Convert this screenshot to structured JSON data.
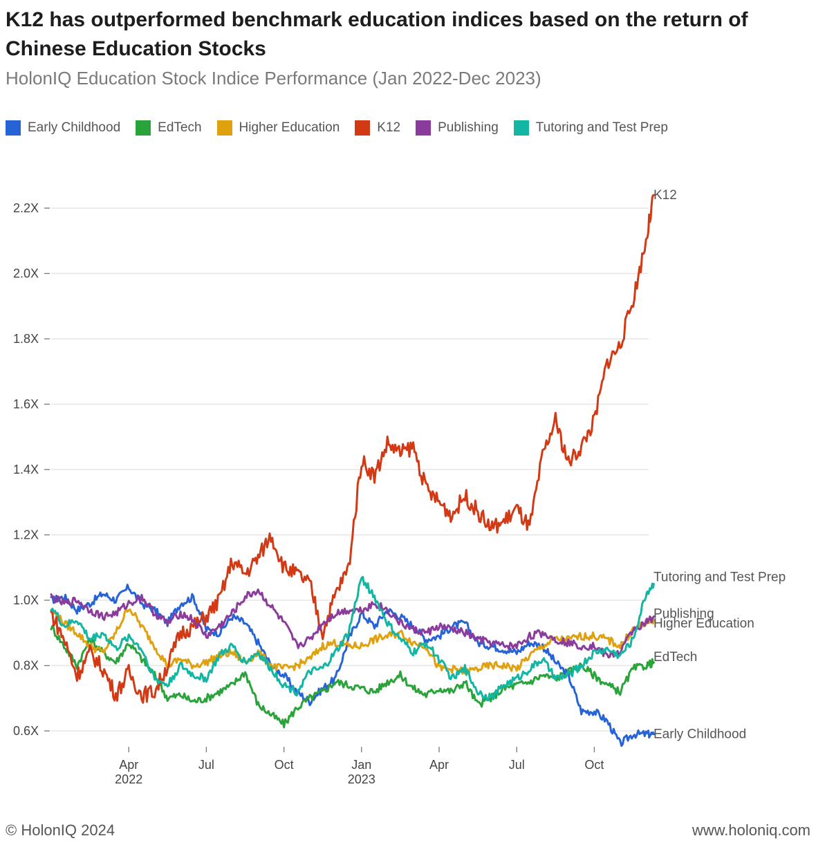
{
  "header": {
    "title": "K12 has outperformed benchmark education indices based on the return of Chinese Education Stocks",
    "subtitle": "HolonIQ Education Stock Indice Performance (Jan 2022-Dec 2023)"
  },
  "footer": {
    "copyright": "© HolonIQ 2024",
    "website": "www.holoniq.com"
  },
  "chart_data": {
    "type": "line",
    "title": "HolonIQ Education Stock Indice Performance (Jan 2022-Dec 2023)",
    "xlabel": "",
    "ylabel": "",
    "x_range_months": [
      0,
      24
    ],
    "ylim": [
      0.55,
      2.3
    ],
    "y_ticks": [
      0.6,
      0.8,
      1.0,
      1.2,
      1.4,
      1.6,
      1.8,
      2.0,
      2.2
    ],
    "y_tick_labels": [
      "0.6X",
      "0.8X",
      "1.0X",
      "1.2X",
      "1.4X",
      "1.6X",
      "1.8X",
      "2.0X",
      "2.2X"
    ],
    "x_ticks": [
      {
        "month": 3,
        "label": "Apr",
        "sub": "2022"
      },
      {
        "month": 6,
        "label": "Jul",
        "sub": ""
      },
      {
        "month": 9,
        "label": "Oct",
        "sub": ""
      },
      {
        "month": 12,
        "label": "Jan",
        "sub": "2023"
      },
      {
        "month": 15,
        "label": "Apr",
        "sub": ""
      },
      {
        "month": 18,
        "label": "Jul",
        "sub": ""
      },
      {
        "month": 21,
        "label": "Oct",
        "sub": ""
      }
    ],
    "grid": true,
    "legend_position": "top-left",
    "x": [
      0,
      0.5,
      1,
      1.5,
      2,
      2.5,
      3,
      3.5,
      4,
      4.5,
      5,
      5.5,
      6,
      6.5,
      7,
      7.5,
      8,
      8.5,
      9,
      9.5,
      10,
      10.5,
      11,
      11.5,
      12,
      12.5,
      13,
      13.5,
      14,
      14.5,
      15,
      15.5,
      16,
      16.5,
      17,
      17.5,
      18,
      18.5,
      19,
      19.5,
      20,
      20.5,
      21,
      21.5,
      22,
      22.5,
      23,
      23.3
    ],
    "series": [
      {
        "name": "Early Childhood",
        "color": "#2563d6",
        "end_label": "Early Childhood",
        "values": [
          1.0,
          1.01,
          0.97,
          0.99,
          1.02,
          1.0,
          1.04,
          0.99,
          0.97,
          0.93,
          0.99,
          1.01,
          0.91,
          0.9,
          0.95,
          0.93,
          0.87,
          0.8,
          0.77,
          0.72,
          0.69,
          0.73,
          0.76,
          0.88,
          0.96,
          0.92,
          0.97,
          0.95,
          0.92,
          0.88,
          0.89,
          0.92,
          0.93,
          0.87,
          0.86,
          0.85,
          0.84,
          0.87,
          0.86,
          0.81,
          0.77,
          0.66,
          0.66,
          0.63,
          0.56,
          0.59,
          0.59,
          0.59
        ]
      },
      {
        "name": "EdTech",
        "color": "#2aa33a",
        "end_label": "EdTech",
        "values": [
          0.92,
          0.86,
          0.8,
          0.88,
          0.84,
          0.81,
          0.87,
          0.82,
          0.77,
          0.7,
          0.71,
          0.69,
          0.7,
          0.72,
          0.74,
          0.78,
          0.68,
          0.65,
          0.62,
          0.67,
          0.7,
          0.72,
          0.75,
          0.74,
          0.73,
          0.72,
          0.75,
          0.77,
          0.73,
          0.71,
          0.73,
          0.72,
          0.75,
          0.68,
          0.7,
          0.73,
          0.74,
          0.75,
          0.77,
          0.76,
          0.78,
          0.8,
          0.77,
          0.74,
          0.72,
          0.79,
          0.8,
          0.81
        ]
      },
      {
        "name": "Higher Education",
        "color": "#e0a10e",
        "end_label": "Higher Education",
        "values": [
          0.97,
          0.93,
          0.9,
          0.86,
          0.84,
          0.9,
          0.98,
          0.92,
          0.86,
          0.8,
          0.82,
          0.8,
          0.81,
          0.83,
          0.84,
          0.81,
          0.84,
          0.8,
          0.79,
          0.8,
          0.82,
          0.86,
          0.87,
          0.86,
          0.86,
          0.88,
          0.89,
          0.9,
          0.87,
          0.86,
          0.79,
          0.79,
          0.78,
          0.79,
          0.8,
          0.8,
          0.79,
          0.83,
          0.86,
          0.88,
          0.88,
          0.89,
          0.89,
          0.88,
          0.86,
          0.91,
          0.93,
          0.94
        ]
      },
      {
        "name": "K12",
        "color": "#d23a16",
        "end_label": "K12",
        "values": [
          0.96,
          0.88,
          0.77,
          0.84,
          0.79,
          0.71,
          0.78,
          0.71,
          0.72,
          0.8,
          0.9,
          0.92,
          0.95,
          1.0,
          1.12,
          1.08,
          1.13,
          1.2,
          1.1,
          1.08,
          1.05,
          0.9,
          1.02,
          1.1,
          1.43,
          1.38,
          1.48,
          1.45,
          1.47,
          1.34,
          1.3,
          1.26,
          1.32,
          1.27,
          1.22,
          1.24,
          1.28,
          1.22,
          1.44,
          1.55,
          1.42,
          1.47,
          1.55,
          1.73,
          1.78,
          1.92,
          2.1,
          2.24
        ]
      },
      {
        "name": "Publishing",
        "color": "#8b3b9c",
        "end_label": "Publishing",
        "values": [
          1.01,
          0.99,
          1.0,
          0.97,
          0.95,
          0.96,
          0.99,
          1.01,
          0.96,
          0.93,
          0.96,
          0.94,
          0.89,
          0.92,
          0.96,
          1.01,
          1.03,
          0.98,
          0.93,
          0.86,
          0.88,
          0.93,
          0.96,
          0.97,
          0.97,
          0.99,
          0.97,
          0.93,
          0.91,
          0.9,
          0.92,
          0.91,
          0.9,
          0.88,
          0.87,
          0.86,
          0.86,
          0.89,
          0.9,
          0.88,
          0.87,
          0.86,
          0.86,
          0.83,
          0.84,
          0.91,
          0.93,
          0.95
        ]
      },
      {
        "name": "Tutoring and Test Prep",
        "color": "#13b5a3",
        "end_label": "Tutoring and Test Prep",
        "values": [
          0.98,
          0.92,
          0.94,
          0.88,
          0.9,
          0.85,
          0.89,
          0.85,
          0.76,
          0.74,
          0.8,
          0.77,
          0.76,
          0.83,
          0.86,
          0.81,
          0.84,
          0.79,
          0.74,
          0.72,
          0.78,
          0.79,
          0.84,
          0.9,
          1.07,
          1.01,
          0.93,
          0.88,
          0.84,
          0.87,
          0.82,
          0.76,
          0.79,
          0.72,
          0.7,
          0.74,
          0.76,
          0.79,
          0.82,
          0.76,
          0.77,
          0.8,
          0.84,
          0.85,
          0.83,
          0.88,
          1.02,
          1.05
        ]
      }
    ]
  }
}
